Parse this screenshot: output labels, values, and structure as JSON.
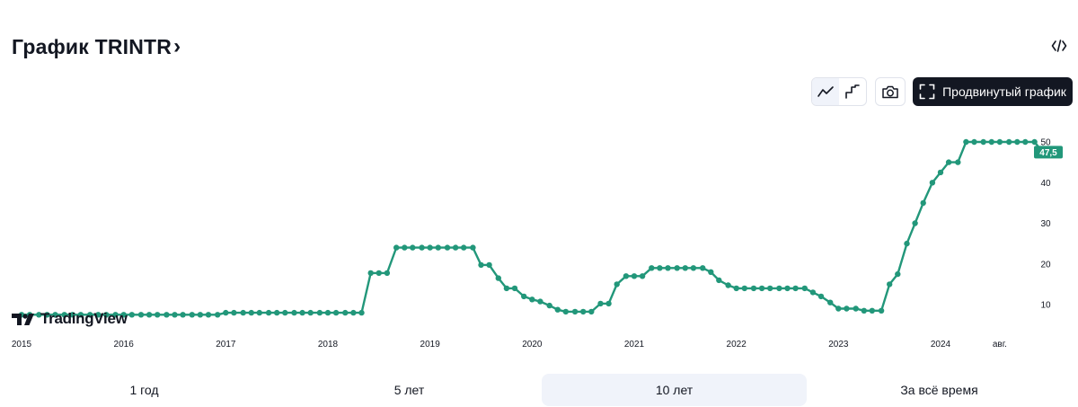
{
  "header": {
    "title": "График TRINTR",
    "title_chevron": "›",
    "embed_icon": "code-icon"
  },
  "toolbar": {
    "line_style_icon": "line-chart-icon",
    "step_style_icon": "step-chart-icon",
    "screenshot_icon": "camera-icon",
    "advanced_label": "Продвинутый график",
    "advanced_icon": "fullscreen-icon"
  },
  "branding": {
    "logo_text": "TradingView"
  },
  "ranges": [
    {
      "label": "1 год",
      "active": false
    },
    {
      "label": "5 лет",
      "active": false
    },
    {
      "label": "10 лет",
      "active": true
    },
    {
      "label": "За всё время",
      "active": false
    }
  ],
  "colors": {
    "line": "#22977a",
    "text": "#131722",
    "accent_dark": "#131722",
    "active_bg": "#f0f3fa"
  },
  "chart_data": {
    "type": "line",
    "ylim": [
      5,
      52
    ],
    "y_ticks": [
      10,
      20,
      30,
      40,
      50
    ],
    "x_tick_labels": [
      "2015",
      "2016",
      "2017",
      "2018",
      "2019",
      "2020",
      "2021",
      "2022",
      "2023",
      "2024",
      "авг."
    ],
    "x_tick_values": [
      2015.0,
      2016.0,
      2017.0,
      2018.0,
      2019.0,
      2020.0,
      2021.0,
      2022.0,
      2023.0,
      2024.0,
      2024.58
    ],
    "last_value_label": "47,5",
    "grid": false,
    "series": [
      {
        "values": [
          [
            2015.0,
            7.5
          ],
          [
            2015.08,
            7.5
          ],
          [
            2015.17,
            7.5
          ],
          [
            2015.25,
            7.5
          ],
          [
            2015.33,
            7.5
          ],
          [
            2015.42,
            7.5
          ],
          [
            2015.5,
            7.5
          ],
          [
            2015.58,
            7.5
          ],
          [
            2015.67,
            7.5
          ],
          [
            2015.75,
            7.5
          ],
          [
            2015.83,
            7.5
          ],
          [
            2015.92,
            7.5
          ],
          [
            2016.0,
            7.5
          ],
          [
            2016.08,
            7.5
          ],
          [
            2016.17,
            7.5
          ],
          [
            2016.25,
            7.5
          ],
          [
            2016.33,
            7.5
          ],
          [
            2016.42,
            7.5
          ],
          [
            2016.5,
            7.5
          ],
          [
            2016.58,
            7.5
          ],
          [
            2016.67,
            7.5
          ],
          [
            2016.75,
            7.5
          ],
          [
            2016.83,
            7.5
          ],
          [
            2016.92,
            7.5
          ],
          [
            2017.0,
            8.0
          ],
          [
            2017.08,
            8.0
          ],
          [
            2017.17,
            8.0
          ],
          [
            2017.25,
            8.0
          ],
          [
            2017.33,
            8.0
          ],
          [
            2017.42,
            8.0
          ],
          [
            2017.5,
            8.0
          ],
          [
            2017.58,
            8.0
          ],
          [
            2017.67,
            8.0
          ],
          [
            2017.75,
            8.0
          ],
          [
            2017.83,
            8.0
          ],
          [
            2017.92,
            8.0
          ],
          [
            2018.0,
            8.0
          ],
          [
            2018.08,
            8.0
          ],
          [
            2018.17,
            8.0
          ],
          [
            2018.25,
            8.0
          ],
          [
            2018.33,
            8.0
          ],
          [
            2018.42,
            17.75
          ],
          [
            2018.5,
            17.75
          ],
          [
            2018.58,
            17.75
          ],
          [
            2018.67,
            24.0
          ],
          [
            2018.75,
            24.0
          ],
          [
            2018.83,
            24.0
          ],
          [
            2018.92,
            24.0
          ],
          [
            2019.0,
            24.0
          ],
          [
            2019.08,
            24.0
          ],
          [
            2019.17,
            24.0
          ],
          [
            2019.25,
            24.0
          ],
          [
            2019.33,
            24.0
          ],
          [
            2019.42,
            24.0
          ],
          [
            2019.5,
            19.75
          ],
          [
            2019.58,
            19.75
          ],
          [
            2019.67,
            16.5
          ],
          [
            2019.75,
            14.0
          ],
          [
            2019.83,
            14.0
          ],
          [
            2019.92,
            12.0
          ],
          [
            2020.0,
            11.25
          ],
          [
            2020.08,
            10.75
          ],
          [
            2020.17,
            9.75
          ],
          [
            2020.25,
            8.75
          ],
          [
            2020.33,
            8.25
          ],
          [
            2020.42,
            8.25
          ],
          [
            2020.5,
            8.25
          ],
          [
            2020.58,
            8.25
          ],
          [
            2020.67,
            10.25
          ],
          [
            2020.75,
            10.25
          ],
          [
            2020.83,
            15.0
          ],
          [
            2020.92,
            17.0
          ],
          [
            2021.0,
            17.0
          ],
          [
            2021.08,
            17.0
          ],
          [
            2021.17,
            19.0
          ],
          [
            2021.25,
            19.0
          ],
          [
            2021.33,
            19.0
          ],
          [
            2021.42,
            19.0
          ],
          [
            2021.5,
            19.0
          ],
          [
            2021.58,
            19.0
          ],
          [
            2021.67,
            19.0
          ],
          [
            2021.75,
            18.0
          ],
          [
            2021.83,
            16.0
          ],
          [
            2021.92,
            14.75
          ],
          [
            2022.0,
            14.0
          ],
          [
            2022.08,
            14.0
          ],
          [
            2022.17,
            14.0
          ],
          [
            2022.25,
            14.0
          ],
          [
            2022.33,
            14.0
          ],
          [
            2022.42,
            14.0
          ],
          [
            2022.5,
            14.0
          ],
          [
            2022.58,
            14.0
          ],
          [
            2022.67,
            14.0
          ],
          [
            2022.75,
            13.0
          ],
          [
            2022.83,
            12.0
          ],
          [
            2022.92,
            10.5
          ],
          [
            2023.0,
            9.0
          ],
          [
            2023.08,
            9.0
          ],
          [
            2023.17,
            9.0
          ],
          [
            2023.25,
            8.5
          ],
          [
            2023.33,
            8.5
          ],
          [
            2023.42,
            8.5
          ],
          [
            2023.5,
            15.0
          ],
          [
            2023.58,
            17.5
          ],
          [
            2023.67,
            25.0
          ],
          [
            2023.75,
            30.0
          ],
          [
            2023.83,
            35.0
          ],
          [
            2023.92,
            40.0
          ],
          [
            2024.0,
            42.5
          ],
          [
            2024.08,
            45.0
          ],
          [
            2024.17,
            45.0
          ],
          [
            2024.25,
            50.0
          ],
          [
            2024.33,
            50.0
          ],
          [
            2024.42,
            50.0
          ],
          [
            2024.5,
            50.0
          ],
          [
            2024.58,
            50.0
          ],
          [
            2024.67,
            50.0
          ],
          [
            2024.75,
            50.0
          ],
          [
            2024.83,
            50.0
          ],
          [
            2024.92,
            50.0
          ],
          [
            2025.0,
            47.5
          ]
        ]
      }
    ]
  }
}
